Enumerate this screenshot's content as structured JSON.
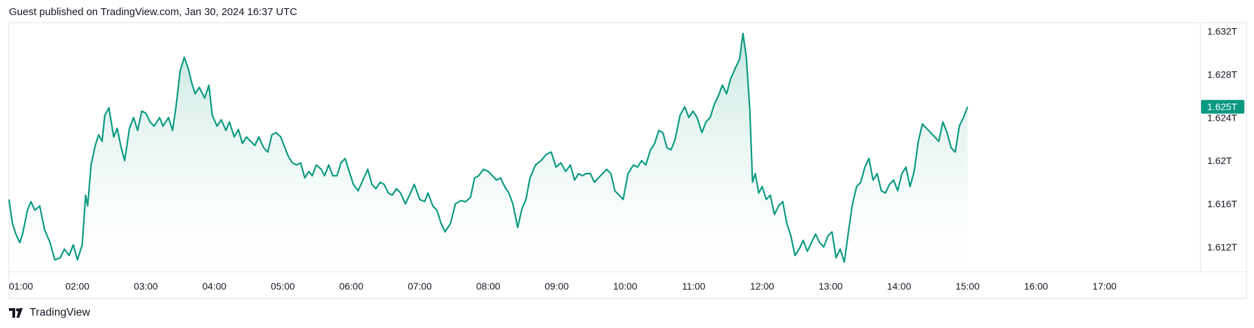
{
  "header": {
    "text": "Guest published on TradingView.com, Jan 30, 2024 16:37 UTC"
  },
  "footer": {
    "brand": "TradingView",
    "logo_icon": "tradingview-logo-icon"
  },
  "colors": {
    "line": "#089981",
    "area_top": "#b2dfd6",
    "area_bottom": "#ffffff",
    "border": "#e0e3eb",
    "text": "#131722",
    "last_price_bg": "#089981"
  },
  "chart_data": {
    "type": "area",
    "title": "",
    "xlabel": "",
    "ylabel": "",
    "x_ticks": [
      "01:00",
      "02:00",
      "03:00",
      "04:00",
      "05:00",
      "06:00",
      "07:00",
      "08:00",
      "09:00",
      "10:00",
      "11:00",
      "12:00",
      "13:00",
      "14:00",
      "15:00",
      "16:00",
      "17:00"
    ],
    "y_ticks": [
      "1.612T",
      "1.616T",
      "1.62T",
      "1.624T",
      "1.628T",
      "1.632T"
    ],
    "y_tick_values": [
      1.612,
      1.616,
      1.62,
      1.624,
      1.628,
      1.632
    ],
    "y_unit": "T",
    "ylim": [
      1.6097,
      1.6328
    ],
    "xlim": [
      1.0,
      18.4
    ],
    "grid": false,
    "last_price_label": "1.625T",
    "last_price": 1.625,
    "series": [
      {
        "values": [
          [
            1.0,
            1.6164
          ],
          [
            1.05,
            1.6142
          ],
          [
            1.1,
            1.6132
          ],
          [
            1.16,
            1.6124
          ],
          [
            1.2,
            1.6132
          ],
          [
            1.27,
            1.6154
          ],
          [
            1.32,
            1.6162
          ],
          [
            1.38,
            1.6154
          ],
          [
            1.45,
            1.6158
          ],
          [
            1.52,
            1.6136
          ],
          [
            1.6,
            1.6124
          ],
          [
            1.67,
            1.6108
          ],
          [
            1.75,
            1.611
          ],
          [
            1.81,
            1.6118
          ],
          [
            1.88,
            1.6112
          ],
          [
            1.94,
            1.6122
          ],
          [
            2.0,
            1.6108
          ],
          [
            2.07,
            1.6122
          ],
          [
            2.12,
            1.6168
          ],
          [
            2.15,
            1.6158
          ],
          [
            2.2,
            1.6196
          ],
          [
            2.26,
            1.6214
          ],
          [
            2.31,
            1.6224
          ],
          [
            2.36,
            1.6218
          ],
          [
            2.4,
            1.6242
          ],
          [
            2.46,
            1.6249
          ],
          [
            2.53,
            1.6222
          ],
          [
            2.58,
            1.623
          ],
          [
            2.64,
            1.6212
          ],
          [
            2.69,
            1.62
          ],
          [
            2.76,
            1.623
          ],
          [
            2.82,
            1.624
          ],
          [
            2.88,
            1.6228
          ],
          [
            2.94,
            1.6246
          ],
          [
            3.0,
            1.6244
          ],
          [
            3.06,
            1.6236
          ],
          [
            3.12,
            1.6232
          ],
          [
            3.2,
            1.624
          ],
          [
            3.25,
            1.6232
          ],
          [
            3.33,
            1.624
          ],
          [
            3.39,
            1.6228
          ],
          [
            3.44,
            1.625
          ],
          [
            3.5,
            1.6283
          ],
          [
            3.56,
            1.6296
          ],
          [
            3.62,
            1.6285
          ],
          [
            3.67,
            1.6272
          ],
          [
            3.72,
            1.6262
          ],
          [
            3.78,
            1.6268
          ],
          [
            3.86,
            1.6258
          ],
          [
            3.92,
            1.627
          ],
          [
            3.97,
            1.6242
          ],
          [
            4.04,
            1.6232
          ],
          [
            4.1,
            1.6238
          ],
          [
            4.17,
            1.6228
          ],
          [
            4.22,
            1.6236
          ],
          [
            4.29,
            1.6222
          ],
          [
            4.35,
            1.6229
          ],
          [
            4.41,
            1.6216
          ],
          [
            4.47,
            1.6222
          ],
          [
            4.53,
            1.6218
          ],
          [
            4.59,
            1.6214
          ],
          [
            4.65,
            1.6222
          ],
          [
            4.72,
            1.6212
          ],
          [
            4.78,
            1.6208
          ],
          [
            4.84,
            1.6224
          ],
          [
            4.9,
            1.6226
          ],
          [
            4.97,
            1.6222
          ],
          [
            5.03,
            1.6212
          ],
          [
            5.08,
            1.6204
          ],
          [
            5.14,
            1.6198
          ],
          [
            5.2,
            1.6196
          ],
          [
            5.26,
            1.6198
          ],
          [
            5.32,
            1.6184
          ],
          [
            5.38,
            1.619
          ],
          [
            5.43,
            1.6186
          ],
          [
            5.49,
            1.6196
          ],
          [
            5.56,
            1.6192
          ],
          [
            5.61,
            1.6186
          ],
          [
            5.67,
            1.6196
          ],
          [
            5.73,
            1.6186
          ],
          [
            5.79,
            1.6186
          ],
          [
            5.85,
            1.6198
          ],
          [
            5.91,
            1.6202
          ],
          [
            5.97,
            1.619
          ],
          [
            6.03,
            1.6178
          ],
          [
            6.1,
            1.6172
          ],
          [
            6.17,
            1.6182
          ],
          [
            6.24,
            1.6192
          ],
          [
            6.3,
            1.6178
          ],
          [
            6.36,
            1.6174
          ],
          [
            6.42,
            1.618
          ],
          [
            6.48,
            1.6178
          ],
          [
            6.54,
            1.617
          ],
          [
            6.6,
            1.6168
          ],
          [
            6.66,
            1.6174
          ],
          [
            6.72,
            1.617
          ],
          [
            6.79,
            1.616
          ],
          [
            6.85,
            1.6168
          ],
          [
            6.92,
            1.6178
          ],
          [
            7.0,
            1.6164
          ],
          [
            7.07,
            1.6162
          ],
          [
            7.12,
            1.617
          ],
          [
            7.19,
            1.6158
          ],
          [
            7.25,
            1.6154
          ],
          [
            7.31,
            1.6142
          ],
          [
            7.37,
            1.6134
          ],
          [
            7.45,
            1.6142
          ],
          [
            7.52,
            1.616
          ],
          [
            7.6,
            1.6163
          ],
          [
            7.67,
            1.6162
          ],
          [
            7.74,
            1.6166
          ],
          [
            7.8,
            1.6184
          ],
          [
            7.86,
            1.6186
          ],
          [
            7.93,
            1.6192
          ],
          [
            8.0,
            1.619
          ],
          [
            8.06,
            1.6186
          ],
          [
            8.12,
            1.6182
          ],
          [
            8.18,
            1.6184
          ],
          [
            8.24,
            1.6176
          ],
          [
            8.3,
            1.617
          ],
          [
            8.36,
            1.616
          ],
          [
            8.43,
            1.6138
          ],
          [
            8.49,
            1.6155
          ],
          [
            8.55,
            1.6164
          ],
          [
            8.61,
            1.6184
          ],
          [
            8.69,
            1.6196
          ],
          [
            8.77,
            1.62
          ],
          [
            8.85,
            1.6206
          ],
          [
            8.92,
            1.6208
          ],
          [
            8.99,
            1.6194
          ],
          [
            9.06,
            1.6198
          ],
          [
            9.13,
            1.619
          ],
          [
            9.2,
            1.6196
          ],
          [
            9.26,
            1.6182
          ],
          [
            9.32,
            1.6188
          ],
          [
            9.37,
            1.6186
          ],
          [
            9.43,
            1.6188
          ],
          [
            9.49,
            1.6188
          ],
          [
            9.55,
            1.618
          ],
          [
            9.61,
            1.6184
          ],
          [
            9.67,
            1.6188
          ],
          [
            9.73,
            1.6192
          ],
          [
            9.79,
            1.6188
          ],
          [
            9.85,
            1.6172
          ],
          [
            9.91,
            1.6168
          ],
          [
            9.97,
            1.6164
          ],
          [
            10.04,
            1.6188
          ],
          [
            10.12,
            1.6196
          ],
          [
            10.18,
            1.6194
          ],
          [
            10.24,
            1.62
          ],
          [
            10.3,
            1.6196
          ],
          [
            10.37,
            1.621
          ],
          [
            10.43,
            1.6216
          ],
          [
            10.49,
            1.6228
          ],
          [
            10.55,
            1.6226
          ],
          [
            10.61,
            1.6212
          ],
          [
            10.67,
            1.621
          ],
          [
            10.73,
            1.622
          ],
          [
            10.8,
            1.6242
          ],
          [
            10.87,
            1.625
          ],
          [
            10.93,
            1.624
          ],
          [
            10.99,
            1.6246
          ],
          [
            11.05,
            1.624
          ],
          [
            11.12,
            1.6226
          ],
          [
            11.18,
            1.6236
          ],
          [
            11.24,
            1.624
          ],
          [
            11.3,
            1.6252
          ],
          [
            11.36,
            1.626
          ],
          [
            11.42,
            1.627
          ],
          [
            11.48,
            1.6262
          ],
          [
            11.54,
            1.6276
          ],
          [
            11.61,
            1.6286
          ],
          [
            11.67,
            1.6294
          ],
          [
            11.72,
            1.6318
          ],
          [
            11.77,
            1.6295
          ],
          [
            11.82,
            1.6248
          ],
          [
            11.86,
            1.618
          ],
          [
            11.9,
            1.6188
          ],
          [
            11.95,
            1.617
          ],
          [
            12.0,
            1.6176
          ],
          [
            12.06,
            1.6164
          ],
          [
            12.12,
            1.6168
          ],
          [
            12.18,
            1.615
          ],
          [
            12.24,
            1.6158
          ],
          [
            12.3,
            1.6162
          ],
          [
            12.36,
            1.6142
          ],
          [
            12.42,
            1.613
          ],
          [
            12.48,
            1.6112
          ],
          [
            12.54,
            1.6118
          ],
          [
            12.6,
            1.6126
          ],
          [
            12.66,
            1.6116
          ],
          [
            12.72,
            1.6124
          ],
          [
            12.78,
            1.6132
          ],
          [
            12.84,
            1.6124
          ],
          [
            12.9,
            1.612
          ],
          [
            12.96,
            1.613
          ],
          [
            13.02,
            1.6134
          ],
          [
            13.08,
            1.611
          ],
          [
            13.14,
            1.6118
          ],
          [
            13.2,
            1.6106
          ],
          [
            13.26,
            1.6134
          ],
          [
            13.32,
            1.616
          ],
          [
            13.38,
            1.6176
          ],
          [
            13.44,
            1.618
          ],
          [
            13.5,
            1.6194
          ],
          [
            13.56,
            1.6202
          ],
          [
            13.62,
            1.6182
          ],
          [
            13.68,
            1.6188
          ],
          [
            13.74,
            1.6172
          ],
          [
            13.8,
            1.617
          ],
          [
            13.86,
            1.6178
          ],
          [
            13.92,
            1.6182
          ],
          [
            13.98,
            1.6172
          ],
          [
            14.04,
            1.6188
          ],
          [
            14.1,
            1.6194
          ],
          [
            14.16,
            1.6176
          ],
          [
            14.22,
            1.619
          ],
          [
            14.28,
            1.6218
          ],
          [
            14.34,
            1.6234
          ],
          [
            14.4,
            1.623
          ],
          [
            14.46,
            1.6226
          ],
          [
            14.52,
            1.6222
          ],
          [
            14.58,
            1.6218
          ],
          [
            14.64,
            1.6236
          ],
          [
            14.7,
            1.6226
          ],
          [
            14.76,
            1.6212
          ],
          [
            14.82,
            1.6208
          ],
          [
            14.88,
            1.6232
          ],
          [
            14.94,
            1.624
          ],
          [
            15.0,
            1.625
          ]
        ]
      }
    ]
  }
}
